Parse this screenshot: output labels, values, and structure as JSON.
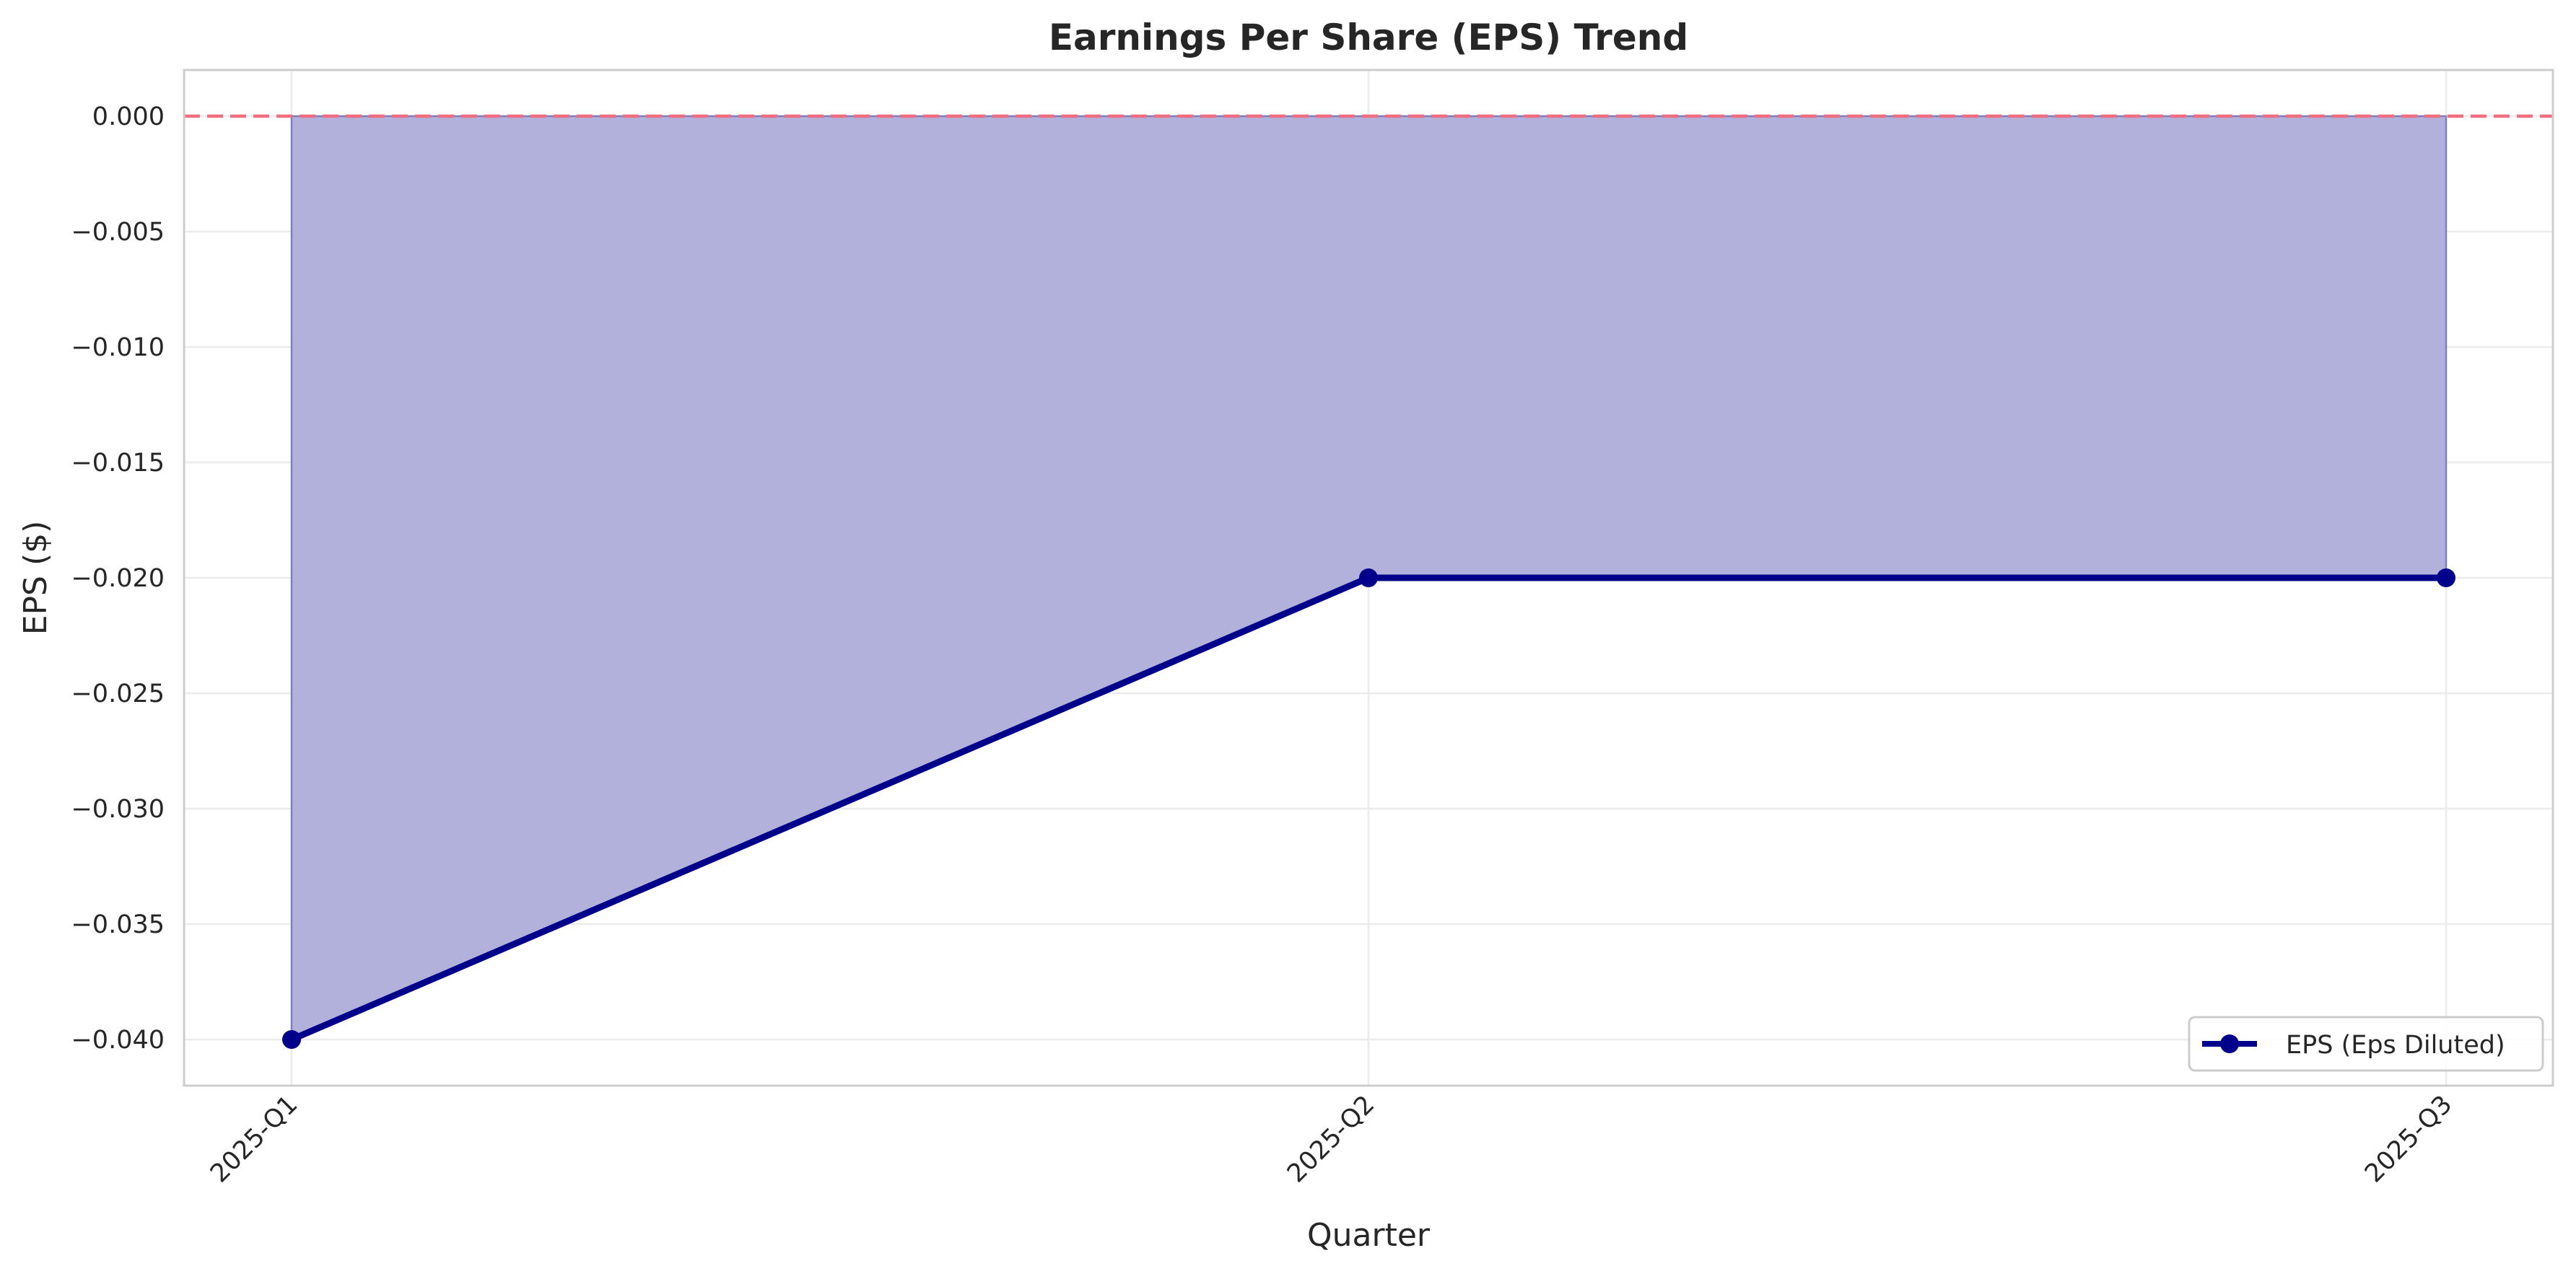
{
  "chart_data": {
    "type": "area",
    "title": "Earnings Per Share (EPS) Trend",
    "xlabel": "Quarter",
    "ylabel": "EPS ($)",
    "categories": [
      "2025-Q1",
      "2025-Q2",
      "2025-Q3"
    ],
    "series": [
      {
        "name": "EPS (Eps Diluted)",
        "values": [
          -0.04,
          -0.02,
          -0.02
        ],
        "color": "#00008b",
        "fill_color": "#b1b1dc",
        "marker": "circle"
      }
    ],
    "reference_line": {
      "y": 0.0,
      "color": "#f26d7d",
      "style": "dashed"
    },
    "ylim": [
      -0.042,
      0.002
    ],
    "y_ticks": [
      0.0,
      -0.005,
      -0.01,
      -0.015,
      -0.02,
      -0.025,
      -0.03,
      -0.035,
      -0.04
    ],
    "y_tick_labels": [
      "0.000",
      "−0.005",
      "−0.010",
      "−0.015",
      "−0.020",
      "−0.025",
      "−0.030",
      "−0.035",
      "−0.040"
    ],
    "grid": true,
    "legend_position": "lower-right",
    "x_tick_rotation": "45deg"
  }
}
